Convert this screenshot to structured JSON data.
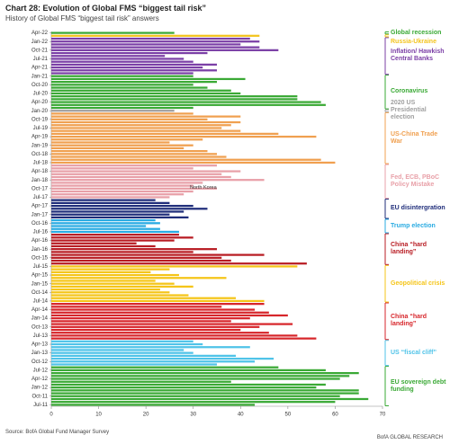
{
  "chart_data": {
    "type": "bar",
    "orientation": "horizontal",
    "title": "Chart 28: Evolution of Global FMS “biggest tail risk”",
    "subtitle": "History of Global FMS “biggest tail risk” answers",
    "source": "Source: BofA Global Fund Manager Survey",
    "credit": "BofA GLOBAL RESEARCH",
    "annotation": "North Korea",
    "xlim": [
      0,
      70
    ],
    "xticks": [
      0,
      10,
      20,
      30,
      40,
      50,
      60,
      70
    ],
    "series": [
      {
        "name": "EU sovereign debt funding",
        "color": "#3aa935",
        "categories": [
          "Jul-11",
          null,
          null,
          "Oct-11",
          null,
          null,
          "Jan-12",
          null,
          null,
          "Apr-12",
          null,
          null,
          "Jul-12",
          null
        ],
        "values": [
          43,
          60,
          67,
          61,
          65,
          65,
          56,
          58,
          38,
          61,
          63,
          65,
          58,
          48
        ]
      },
      {
        "name": "US “fiscal cliff”",
        "color": "#4fc3e8",
        "categories": [
          null,
          "Oct-12",
          null,
          null,
          "Jan-13",
          null,
          null,
          "Apr-13",
          null
        ],
        "values": [
          35,
          43,
          47,
          39,
          30,
          28,
          42,
          32,
          30
        ]
      },
      {
        "name": "China “hard landing”",
        "color": "#d7262b",
        "categories": [
          null,
          "Jul-13",
          null,
          null,
          "Oct-13",
          null,
          null,
          "Jan-14",
          null,
          null,
          "Apr-14",
          null,
          null
        ],
        "values": [
          56,
          52,
          46,
          40,
          44,
          51,
          38,
          42,
          50,
          46,
          43,
          36,
          45
        ]
      },
      {
        "name": "Geopolitical crisis",
        "color": "#f5c518",
        "categories": [
          "Jul-14",
          null,
          null,
          "Oct-14",
          null,
          null,
          "Jan-15",
          null,
          null,
          "Apr-15",
          null,
          null,
          "Jul-15"
        ],
        "values": [
          45,
          39,
          29,
          25,
          23,
          30,
          26,
          22,
          37,
          27,
          21,
          25,
          52
        ]
      },
      {
        "name": "China “hard landing”",
        "color": "#b81c23",
        "categories": [
          null,
          null,
          "Oct-15",
          null,
          null,
          "Jan-16",
          null,
          null,
          "Apr-16",
          null,
          null
        ],
        "values": [
          54,
          38,
          36,
          45,
          30,
          35,
          22,
          18,
          26,
          30,
          27
        ]
      },
      {
        "name": "Trump election",
        "color": "#29abe2",
        "categories": [
          "Jul-16",
          null,
          null,
          "Oct-16",
          null
        ],
        "values": [
          27,
          23,
          20,
          23,
          22
        ]
      },
      {
        "name": "EU disintergration",
        "color": "#1f2d7a",
        "categories": [
          null,
          "Jan-17",
          null,
          null,
          "Apr-17",
          null,
          null
        ],
        "values": [
          29,
          25,
          28,
          33,
          30,
          25,
          22
        ]
      },
      {
        "name": "Fed, ECB, PBoC Policy Mistake",
        "color": "#e8a0a8",
        "categories": [
          "Jul-17",
          null,
          null,
          "Oct-17",
          null,
          null,
          "Jan-18",
          null,
          null,
          "Apr-18",
          null,
          null
        ],
        "values": [
          25,
          28,
          30,
          35,
          30,
          32,
          45,
          38,
          36,
          40,
          30,
          35
        ]
      },
      {
        "name": "US-China Trade War",
        "color": "#f0a050",
        "categories": [
          "Jul-18",
          null,
          null,
          "Oct-18",
          null,
          null,
          "Jan-19",
          null,
          null,
          "Apr-19",
          null,
          null,
          "Jul-19",
          null,
          null,
          "Oct-19",
          null,
          null
        ],
        "values": [
          60,
          57,
          37,
          35,
          33,
          28,
          30,
          25,
          32,
          56,
          48,
          40,
          36,
          38,
          40,
          33,
          40,
          30
        ]
      },
      {
        "name": "2020 US Presidential election",
        "color": "#a0a0a0",
        "categories": [
          "Jan-20"
        ],
        "values": [
          26
        ]
      },
      {
        "name": "Coronavirus",
        "color": "#3aa935",
        "categories": [
          null,
          null,
          "Apr-20",
          null,
          null,
          "Jul-20",
          null,
          null,
          "Oct-20",
          null,
          null,
          "Jan-21"
        ],
        "values": [
          30,
          58,
          57,
          52,
          52,
          40,
          38,
          33,
          30,
          35,
          41,
          30
        ]
      },
      {
        "name": "Inflation/ Hawkish Central Banks",
        "color": "#7b3fa6",
        "categories": [
          null,
          null,
          "Apr-21",
          null,
          null,
          "Jul-21",
          null,
          null,
          "Oct-21",
          null,
          null,
          "Jan-22",
          null
        ],
        "values": [
          30,
          35,
          32,
          35,
          30,
          28,
          24,
          33,
          48,
          44,
          40,
          44,
          42
        ]
      },
      {
        "name": "Russia-Ukraine",
        "color": "#f3c41e",
        "categories": [
          null
        ],
        "values": [
          44
        ]
      },
      {
        "name": "Global recession",
        "color": "#3aa935",
        "categories": [
          "Apr-22"
        ],
        "values": [
          26
        ]
      }
    ]
  }
}
